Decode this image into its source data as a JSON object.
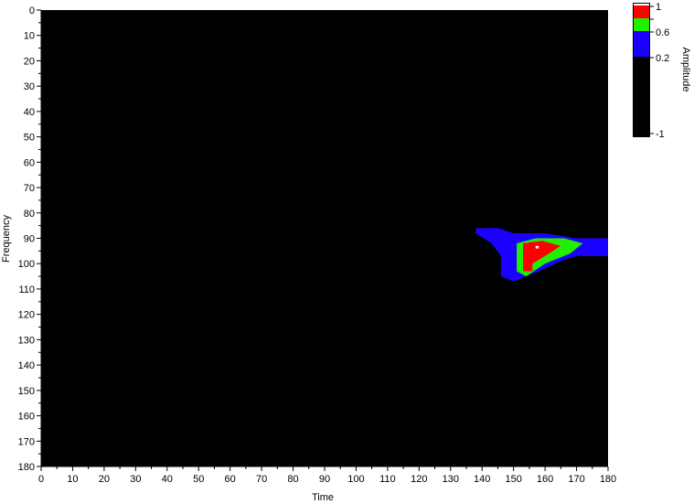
{
  "chart_data": {
    "type": "heatmap",
    "xlabel": "Time",
    "ylabel": "Frequency",
    "xlim": [
      0,
      180
    ],
    "ylim": [
      0,
      180
    ],
    "y_inverted": true,
    "x_ticks": [
      0,
      10,
      20,
      30,
      40,
      50,
      60,
      70,
      80,
      90,
      100,
      110,
      120,
      130,
      140,
      150,
      160,
      170,
      180
    ],
    "y_ticks": [
      0,
      10,
      20,
      30,
      40,
      50,
      60,
      70,
      80,
      90,
      100,
      110,
      120,
      130,
      140,
      150,
      160,
      170,
      180
    ],
    "background_color": "#000000",
    "colorbar": {
      "label": "Amplitude",
      "tick_labels": [
        "1",
        "",
        "0.6",
        "0.2",
        "-1"
      ],
      "levels": [
        {
          "from": -1.0,
          "to": 0.2,
          "color": "#000000"
        },
        {
          "from": 0.2,
          "to": 0.6,
          "color": "#1a00ff"
        },
        {
          "from": 0.6,
          "to": 0.8,
          "color": "#22ee00"
        },
        {
          "from": 0.8,
          "to": 0.98,
          "color": "#ff0000"
        },
        {
          "from": 0.98,
          "to": 1.0,
          "color": "#ffffff"
        }
      ]
    },
    "regions": [
      {
        "level": "0.2",
        "color": "#1a00ff",
        "points": [
          [
            138,
            86
          ],
          [
            145,
            86
          ],
          [
            150,
            88
          ],
          [
            160,
            88
          ],
          [
            170,
            90
          ],
          [
            180,
            90
          ],
          [
            180,
            97
          ],
          [
            170,
            97
          ],
          [
            165,
            99
          ],
          [
            158,
            103
          ],
          [
            150,
            107
          ],
          [
            146,
            105
          ],
          [
            146,
            97
          ],
          [
            143,
            92
          ],
          [
            138,
            88
          ]
        ]
      },
      {
        "level": "0.6",
        "color": "#22ee00",
        "points": [
          [
            151,
            92
          ],
          [
            157,
            90
          ],
          [
            166,
            90
          ],
          [
            172,
            92
          ],
          [
            168,
            96
          ],
          [
            160,
            100
          ],
          [
            154,
            105
          ],
          [
            151,
            103
          ],
          [
            151,
            96
          ]
        ]
      },
      {
        "level": "0.8",
        "color": "#ff0000",
        "points": [
          [
            153,
            92
          ],
          [
            159,
            91
          ],
          [
            165,
            93
          ],
          [
            160,
            97
          ],
          [
            156,
            100
          ],
          [
            156,
            103
          ],
          [
            153,
            103
          ]
        ]
      },
      {
        "level": "1",
        "color": "#ffffff",
        "points": [
          [
            157,
            93
          ],
          [
            158,
            93
          ],
          [
            158,
            94
          ],
          [
            157,
            94
          ]
        ]
      }
    ]
  }
}
